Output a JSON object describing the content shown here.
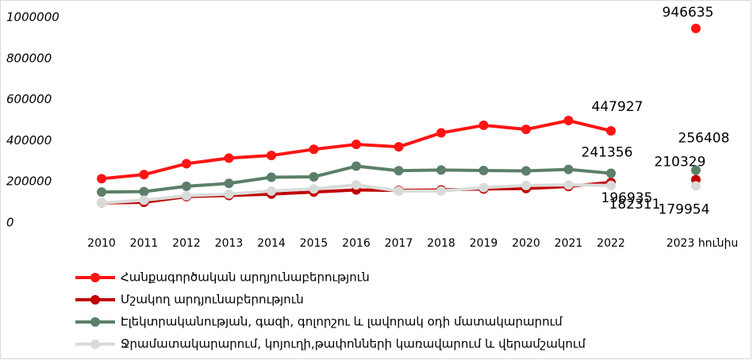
{
  "chart_data": {
    "type": "line",
    "categories": [
      "2010",
      "2011",
      "2012",
      "2013",
      "2014",
      "2015",
      "2016",
      "2017",
      "2018",
      "2019",
      "2020",
      "2021",
      "2022",
      null,
      "2023 հունիս"
    ],
    "ylim": [
      0,
      1000000
    ],
    "yticks": [
      0,
      200000,
      400000,
      600000,
      800000,
      1000000
    ],
    "grid": false,
    "legend": "bottom",
    "series": [
      {
        "name": "Հանքագործական արդյունաբերություն",
        "color": "#ff1414",
        "values": [
          215000,
          235000,
          288000,
          315000,
          328000,
          358000,
          382000,
          370000,
          438000,
          475000,
          455000,
          498000,
          447927,
          null,
          946635
        ],
        "value_labels": [
          null,
          null,
          null,
          null,
          null,
          null,
          null,
          null,
          null,
          null,
          null,
          null,
          "447927",
          null,
          "946635"
        ]
      },
      {
        "name": "Մշակող արդյունաբերություն",
        "color": "#c00000",
        "values": [
          97000,
          100000,
          128000,
          133000,
          140000,
          150000,
          160000,
          158000,
          160000,
          165000,
          167000,
          177000,
          196935,
          null,
          210329
        ],
        "value_labels": [
          null,
          null,
          null,
          null,
          null,
          null,
          null,
          null,
          null,
          null,
          null,
          null,
          "196935",
          null,
          "210329"
        ]
      },
      {
        "name": "Էլեկտրականության, գազի, գոլորշու և լավորակ օդի մատակարարում",
        "color": "#5b7f69",
        "values": [
          150000,
          152000,
          178000,
          192000,
          222000,
          224000,
          276000,
          254000,
          257000,
          255000,
          253000,
          260000,
          241356,
          null,
          256408
        ],
        "value_labels": [
          null,
          null,
          null,
          null,
          null,
          null,
          null,
          null,
          null,
          null,
          null,
          null,
          "241356",
          null,
          "256408"
        ]
      },
      {
        "name": "Ջրամատակարարում, կոյուղի,թափոնների կառավարում և վերամշակում",
        "color": "#d8dcd9",
        "values": [
          97000,
          110000,
          132000,
          140000,
          155000,
          165000,
          185000,
          155000,
          155000,
          172000,
          182000,
          185000,
          182311,
          null,
          179954
        ],
        "value_labels": [
          null,
          null,
          null,
          null,
          null,
          null,
          null,
          null,
          null,
          null,
          null,
          null,
          "182311",
          null,
          "179954"
        ]
      }
    ]
  }
}
